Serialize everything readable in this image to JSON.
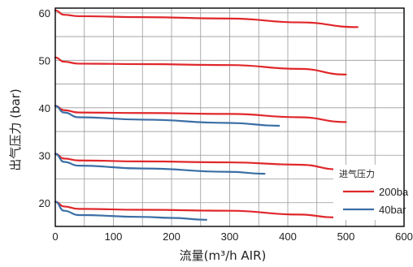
{
  "chart_data": {
    "type": "line",
    "xlabel": "流量(m³/h AIR)",
    "ylabel": "出气压力 (bar)",
    "xlim": [
      0,
      600
    ],
    "ylim": [
      15,
      61
    ],
    "x_ticks": [
      "0",
      "100",
      "200",
      "300",
      "400",
      "500",
      "600"
    ],
    "y_ticks": [
      "20",
      "30",
      "40",
      "50",
      "60"
    ],
    "grid": true,
    "legend": {
      "title": "进气压力",
      "placement": "bottom-right",
      "entries": [
        {
          "label": "200ba",
          "color": "#e0272b"
        },
        {
          "label": "40bar",
          "color": "#3b6ea5"
        }
      ]
    },
    "series": [
      {
        "color": "#e0272b",
        "points": [
          [
            0,
            60.5
          ],
          [
            15,
            59.6
          ],
          [
            40,
            59.3
          ],
          [
            150,
            59.1
          ],
          [
            300,
            58.8
          ],
          [
            420,
            58.0
          ],
          [
            520,
            57.0
          ]
        ]
      },
      {
        "color": "#e0272b",
        "points": [
          [
            0,
            50.6
          ],
          [
            15,
            49.7
          ],
          [
            40,
            49.3
          ],
          [
            150,
            49.2
          ],
          [
            300,
            49.0
          ],
          [
            420,
            48.2
          ],
          [
            500,
            47.0
          ]
        ]
      },
      {
        "color": "#e0272b",
        "points": [
          [
            0,
            40.4
          ],
          [
            15,
            39.5
          ],
          [
            40,
            39.0
          ],
          [
            150,
            38.9
          ],
          [
            300,
            38.7
          ],
          [
            420,
            38.0
          ],
          [
            500,
            37.0
          ]
        ]
      },
      {
        "color": "#e0272b",
        "points": [
          [
            0,
            30.3
          ],
          [
            15,
            29.3
          ],
          [
            40,
            28.9
          ],
          [
            150,
            28.7
          ],
          [
            300,
            28.5
          ],
          [
            420,
            28.0
          ],
          [
            490,
            27.0
          ]
        ]
      },
      {
        "color": "#e0272b",
        "points": [
          [
            0,
            20.2
          ],
          [
            15,
            19.2
          ],
          [
            40,
            18.7
          ],
          [
            150,
            18.5
          ],
          [
            300,
            18.3
          ],
          [
            420,
            17.5
          ],
          [
            480,
            16.9
          ]
        ]
      },
      {
        "color": "#3b6ea5",
        "points": [
          [
            0,
            40.4
          ],
          [
            15,
            39.0
          ],
          [
            40,
            38.0
          ],
          [
            150,
            37.5
          ],
          [
            300,
            36.8
          ],
          [
            385,
            36.2
          ]
        ]
      },
      {
        "color": "#3b6ea5",
        "points": [
          [
            0,
            30.3
          ],
          [
            15,
            28.6
          ],
          [
            40,
            27.8
          ],
          [
            150,
            27.2
          ],
          [
            300,
            26.5
          ],
          [
            360,
            26.1
          ]
        ]
      },
      {
        "color": "#3b6ea5",
        "points": [
          [
            0,
            20.2
          ],
          [
            15,
            18.3
          ],
          [
            40,
            17.4
          ],
          [
            150,
            17.0
          ],
          [
            200,
            16.8
          ],
          [
            260,
            16.4
          ]
        ]
      }
    ]
  }
}
